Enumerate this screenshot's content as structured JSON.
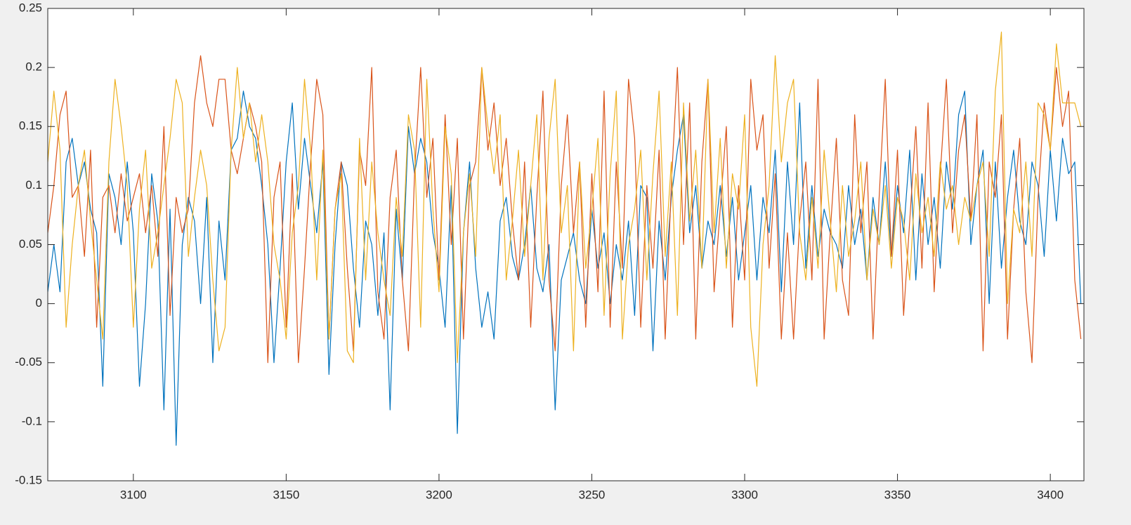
{
  "chart_data": {
    "type": "line",
    "x": [
      3072,
      3074,
      3076,
      3078,
      3080,
      3082,
      3084,
      3086,
      3088,
      3090,
      3092,
      3094,
      3096,
      3098,
      3100,
      3102,
      3104,
      3106,
      3108,
      3110,
      3112,
      3114,
      3116,
      3118,
      3120,
      3122,
      3124,
      3126,
      3128,
      3130,
      3132,
      3134,
      3136,
      3138,
      3140,
      3142,
      3144,
      3146,
      3148,
      3150,
      3152,
      3154,
      3156,
      3158,
      3160,
      3162,
      3164,
      3166,
      3168,
      3170,
      3172,
      3174,
      3176,
      3178,
      3180,
      3182,
      3184,
      3186,
      3188,
      3190,
      3192,
      3194,
      3196,
      3198,
      3200,
      3202,
      3204,
      3206,
      3208,
      3210,
      3212,
      3214,
      3216,
      3218,
      3220,
      3222,
      3224,
      3226,
      3228,
      3230,
      3232,
      3234,
      3236,
      3238,
      3240,
      3242,
      3244,
      3246,
      3248,
      3250,
      3252,
      3254,
      3256,
      3258,
      3260,
      3262,
      3264,
      3266,
      3268,
      3270,
      3272,
      3274,
      3276,
      3278,
      3280,
      3282,
      3284,
      3286,
      3288,
      3290,
      3292,
      3294,
      3296,
      3298,
      3300,
      3302,
      3304,
      3306,
      3308,
      3310,
      3312,
      3314,
      3316,
      3318,
      3320,
      3322,
      3324,
      3326,
      3328,
      3330,
      3332,
      3334,
      3336,
      3338,
      3340,
      3342,
      3344,
      3346,
      3348,
      3350,
      3352,
      3354,
      3356,
      3358,
      3360,
      3362,
      3364,
      3366,
      3368,
      3370,
      3372,
      3374,
      3376,
      3378,
      3380,
      3382,
      3384,
      3386,
      3388,
      3390,
      3392,
      3394,
      3396,
      3398,
      3400,
      3402,
      3404,
      3406,
      3408,
      3410
    ],
    "series": [
      {
        "color": "#0072BD",
        "values": [
          0.01,
          0.05,
          0.01,
          0.12,
          0.14,
          0.1,
          0.12,
          0.08,
          0.06,
          -0.07,
          0.11,
          0.09,
          0.05,
          0.12,
          0.06,
          -0.07,
          0.0,
          0.11,
          0.07,
          -0.09,
          0.08,
          -0.12,
          0.05,
          0.09,
          0.07,
          0.0,
          0.09,
          -0.05,
          0.07,
          0.02,
          0.13,
          0.14,
          0.18,
          0.15,
          0.14,
          0.1,
          0.05,
          -0.05,
          0.03,
          0.12,
          0.17,
          0.08,
          0.14,
          0.1,
          0.06,
          0.12,
          -0.06,
          0.05,
          0.12,
          0.1,
          0.03,
          -0.02,
          0.07,
          0.05,
          -0.01,
          0.06,
          -0.09,
          0.08,
          0.02,
          0.15,
          0.11,
          0.14,
          0.12,
          0.06,
          0.03,
          -0.02,
          0.1,
          -0.11,
          0.06,
          0.12,
          0.03,
          -0.02,
          0.01,
          -0.03,
          0.07,
          0.09,
          0.04,
          0.02,
          0.05,
          0.1,
          0.03,
          0.01,
          0.05,
          -0.09,
          0.02,
          0.04,
          0.06,
          0.02,
          0.0,
          0.08,
          0.03,
          0.06,
          0.0,
          0.05,
          0.02,
          0.07,
          -0.01,
          0.1,
          0.09,
          -0.04,
          0.07,
          0.02,
          0.09,
          0.13,
          0.16,
          0.06,
          0.1,
          0.03,
          0.07,
          0.05,
          0.1,
          0.04,
          0.09,
          0.02,
          0.06,
          0.1,
          0.02,
          0.09,
          0.06,
          0.13,
          0.01,
          0.12,
          0.05,
          0.17,
          0.03,
          0.1,
          0.04,
          0.08,
          0.06,
          0.05,
          0.03,
          0.1,
          0.05,
          0.08,
          0.02,
          0.09,
          0.05,
          0.12,
          0.04,
          0.1,
          0.06,
          0.13,
          0.02,
          0.11,
          0.05,
          0.09,
          0.03,
          0.12,
          0.08,
          0.16,
          0.18,
          0.05,
          0.1,
          0.13,
          0.0,
          0.12,
          0.03,
          0.09,
          0.13,
          0.07,
          0.05,
          0.12,
          0.1,
          0.04,
          0.13,
          0.07,
          0.14,
          0.11,
          0.12,
          0.0
        ]
      },
      {
        "color": "#D95319",
        "values": [
          0.06,
          0.1,
          0.16,
          0.18,
          0.09,
          0.1,
          0.04,
          0.13,
          -0.02,
          0.09,
          0.1,
          0.06,
          0.11,
          0.07,
          0.09,
          0.11,
          0.06,
          0.1,
          0.04,
          0.15,
          -0.01,
          0.09,
          0.06,
          0.08,
          0.17,
          0.21,
          0.17,
          0.15,
          0.19,
          0.19,
          0.13,
          0.11,
          0.14,
          0.17,
          0.15,
          0.12,
          -0.05,
          0.09,
          0.12,
          -0.02,
          0.11,
          -0.05,
          0.03,
          0.12,
          0.19,
          0.16,
          -0.03,
          0.08,
          0.12,
          0.03,
          -0.04,
          0.13,
          0.1,
          0.2,
          0.01,
          -0.03,
          0.09,
          0.13,
          0.02,
          -0.04,
          0.11,
          0.2,
          0.09,
          0.14,
          0.02,
          0.16,
          0.05,
          0.14,
          -0.03,
          0.1,
          0.12,
          0.2,
          0.13,
          0.17,
          0.1,
          0.14,
          0.07,
          0.02,
          0.12,
          -0.02,
          0.09,
          0.18,
          0.02,
          -0.04,
          0.1,
          0.16,
          0.06,
          0.12,
          -0.02,
          0.11,
          0.01,
          0.18,
          -0.02,
          0.12,
          0.03,
          0.19,
          0.14,
          -0.02,
          0.1,
          0.03,
          0.13,
          -0.03,
          0.1,
          0.2,
          0.05,
          0.17,
          -0.03,
          0.12,
          0.19,
          0.01,
          0.08,
          0.15,
          -0.02,
          0.1,
          0.02,
          0.19,
          0.13,
          0.16,
          0.03,
          0.11,
          -0.03,
          0.06,
          -0.03,
          0.07,
          0.12,
          0.02,
          0.19,
          -0.03,
          0.06,
          0.14,
          0.02,
          -0.01,
          0.16,
          0.06,
          0.12,
          -0.03,
          0.09,
          0.19,
          0.04,
          0.13,
          -0.01,
          0.07,
          0.15,
          0.03,
          0.17,
          0.01,
          0.11,
          0.19,
          0.06,
          0.13,
          0.16,
          0.07,
          0.16,
          -0.04,
          0.12,
          0.09,
          0.16,
          -0.03,
          0.08,
          0.14,
          0.01,
          -0.05,
          0.09,
          0.17,
          0.13,
          0.2,
          0.15,
          0.18,
          0.02,
          -0.03
        ]
      },
      {
        "color": "#EDB120",
        "values": [
          0.12,
          0.18,
          0.13,
          -0.02,
          0.05,
          0.1,
          0.13,
          0.07,
          0.02,
          -0.03,
          0.12,
          0.19,
          0.15,
          0.1,
          -0.02,
          0.08,
          0.13,
          0.03,
          0.06,
          0.1,
          0.14,
          0.19,
          0.17,
          0.04,
          0.09,
          0.13,
          0.1,
          0.02,
          -0.04,
          -0.02,
          0.13,
          0.2,
          0.14,
          0.17,
          0.12,
          0.16,
          0.12,
          0.05,
          0.02,
          -0.03,
          0.06,
          0.1,
          0.19,
          0.13,
          0.02,
          0.13,
          -0.03,
          0.08,
          0.11,
          -0.04,
          -0.05,
          0.14,
          0.02,
          0.12,
          0.06,
          0.02,
          -0.01,
          0.09,
          0.04,
          0.16,
          0.13,
          -0.02,
          0.19,
          0.08,
          0.01,
          0.15,
          0.11,
          -0.05,
          0.06,
          0.11,
          0.04,
          0.2,
          0.15,
          0.11,
          0.16,
          0.02,
          0.07,
          0.13,
          0.04,
          0.1,
          0.16,
          0.02,
          0.14,
          0.19,
          0.06,
          0.1,
          -0.04,
          0.12,
          0.03,
          0.08,
          0.14,
          -0.01,
          0.11,
          0.18,
          -0.03,
          0.05,
          0.08,
          0.13,
          0.02,
          0.11,
          0.18,
          0.04,
          0.12,
          -0.01,
          0.17,
          0.07,
          0.13,
          0.03,
          0.19,
          0.06,
          0.14,
          0.03,
          0.11,
          0.08,
          0.16,
          -0.02,
          -0.07,
          0.05,
          0.1,
          0.21,
          0.12,
          0.17,
          0.19,
          0.06,
          0.02,
          0.09,
          0.03,
          0.13,
          0.07,
          0.01,
          0.1,
          0.04,
          0.07,
          0.12,
          0.02,
          0.08,
          0.05,
          0.1,
          0.03,
          0.09,
          0.07,
          0.02,
          0.11,
          0.06,
          0.09,
          0.04,
          0.12,
          0.08,
          0.1,
          0.05,
          0.09,
          0.07,
          0.1,
          0.12,
          0.04,
          0.18,
          0.23,
          0.0,
          0.08,
          0.06,
          0.12,
          0.04,
          0.17,
          0.16,
          0.13,
          0.22,
          0.17,
          0.17,
          0.17,
          0.15
        ]
      }
    ],
    "xlim": [
      3072,
      3411
    ],
    "xticks": [
      3100,
      3150,
      3200,
      3250,
      3300,
      3350,
      3400
    ],
    "ylim": [
      -0.15,
      0.25
    ],
    "yticks": [
      -0.15,
      -0.1,
      -0.05,
      0,
      0.05,
      0.1,
      0.15,
      0.2,
      0.25
    ]
  }
}
